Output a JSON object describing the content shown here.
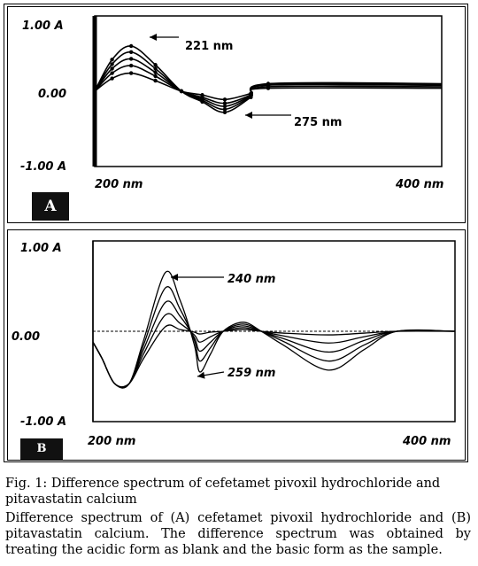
{
  "panels": [
    {
      "badge": "A",
      "y_tick_labels": [
        "1.00 A",
        "0.00",
        "-1.00 A"
      ],
      "x_tick_labels": [
        "200 nm",
        "400 nm"
      ],
      "annotations": [
        "221 nm",
        "275 nm"
      ]
    },
    {
      "badge": "B",
      "y_tick_labels": [
        "1.00 A",
        "0.00",
        "-1.00 A"
      ],
      "x_tick_labels": [
        "200 nm",
        "400 nm"
      ],
      "annotations": [
        "240 nm",
        "259 nm"
      ]
    }
  ],
  "caption": {
    "title": "Fig. 1: Difference spectrum of cefetamet pivoxil hydrochloride and pitavastatin calcium",
    "body": "Difference spectrum of (A) cefetamet pivoxil hydrochloride and (B) pitavastatin calcium. The difference spectrum was obtained by treating the acidic form as blank and the basic form as the sample."
  },
  "chart_data": [
    {
      "type": "line",
      "xlim": [
        200,
        400
      ],
      "ylim": [
        -1.0,
        1.0
      ],
      "y_ticks": [
        1.0,
        0.0,
        -1.0
      ],
      "grid": false,
      "series": [
        {
          "values": [
            [
              200,
              0.0
            ],
            [
              210,
              0.42
            ],
            [
              221,
              0.6
            ],
            [
              235,
              0.35
            ],
            [
              250,
              0.0
            ],
            [
              262,
              -0.14
            ],
            [
              275,
              -0.28
            ],
            [
              290,
              -0.08
            ],
            [
              300,
              0.1
            ],
            [
              400,
              0.1
            ]
          ]
        },
        {
          "values": [
            [
              200,
              0.0
            ],
            [
              210,
              0.36
            ],
            [
              221,
              0.52
            ],
            [
              235,
              0.3
            ],
            [
              250,
              0.0
            ],
            [
              262,
              -0.12
            ],
            [
              275,
              -0.24
            ],
            [
              290,
              -0.07
            ],
            [
              300,
              0.09
            ],
            [
              400,
              0.09
            ]
          ]
        },
        {
          "values": [
            [
              200,
              0.0
            ],
            [
              210,
              0.3
            ],
            [
              221,
              0.43
            ],
            [
              235,
              0.25
            ],
            [
              250,
              0.0
            ],
            [
              262,
              -0.1
            ],
            [
              275,
              -0.2
            ],
            [
              290,
              -0.06
            ],
            [
              300,
              0.08
            ],
            [
              400,
              0.08
            ]
          ]
        },
        {
          "values": [
            [
              200,
              0.0
            ],
            [
              210,
              0.24
            ],
            [
              221,
              0.34
            ],
            [
              235,
              0.2
            ],
            [
              250,
              0.0
            ],
            [
              262,
              -0.08
            ],
            [
              275,
              -0.16
            ],
            [
              290,
              -0.05
            ],
            [
              300,
              0.06
            ],
            [
              400,
              0.06
            ]
          ]
        },
        {
          "values": [
            [
              200,
              0.0
            ],
            [
              210,
              0.17
            ],
            [
              221,
              0.24
            ],
            [
              235,
              0.14
            ],
            [
              250,
              0.0
            ],
            [
              262,
              -0.05
            ],
            [
              275,
              -0.11
            ],
            [
              290,
              -0.03
            ],
            [
              300,
              0.04
            ],
            [
              400,
              0.04
            ]
          ]
        }
      ]
    },
    {
      "type": "line",
      "xlim": [
        200,
        400
      ],
      "ylim": [
        -1.0,
        1.0
      ],
      "y_ticks": [
        1.0,
        0.0,
        -1.0
      ],
      "grid": false,
      "series": [
        {
          "values": [
            [
              200,
              -0.12
            ],
            [
              205,
              -0.3
            ],
            [
              212,
              -0.58
            ],
            [
              220,
              -0.58
            ],
            [
              228,
              -0.1
            ],
            [
              240,
              0.65
            ],
            [
              248,
              0.35
            ],
            [
              256,
              -0.15
            ],
            [
              259,
              -0.45
            ],
            [
              265,
              -0.25
            ],
            [
              272,
              0.0
            ],
            [
              283,
              0.1
            ],
            [
              293,
              0.0
            ],
            [
              305,
              -0.15
            ],
            [
              330,
              -0.43
            ],
            [
              350,
              -0.2
            ],
            [
              368,
              0.0
            ],
            [
              400,
              0.0
            ]
          ]
        },
        {
          "values": [
            [
              200,
              -0.12
            ],
            [
              205,
              -0.3
            ],
            [
              212,
              -0.58
            ],
            [
              220,
              -0.58
            ],
            [
              228,
              -0.15
            ],
            [
              240,
              0.48
            ],
            [
              248,
              0.25
            ],
            [
              256,
              -0.1
            ],
            [
              259,
              -0.33
            ],
            [
              265,
              -0.18
            ],
            [
              272,
              0.0
            ],
            [
              283,
              0.08
            ],
            [
              293,
              0.0
            ],
            [
              305,
              -0.11
            ],
            [
              330,
              -0.33
            ],
            [
              350,
              -0.15
            ],
            [
              368,
              0.0
            ],
            [
              400,
              0.0
            ]
          ]
        },
        {
          "values": [
            [
              200,
              -0.12
            ],
            [
              205,
              -0.3
            ],
            [
              212,
              -0.58
            ],
            [
              220,
              -0.58
            ],
            [
              228,
              -0.2
            ],
            [
              240,
              0.32
            ],
            [
              248,
              0.17
            ],
            [
              256,
              -0.07
            ],
            [
              259,
              -0.22
            ],
            [
              265,
              -0.12
            ],
            [
              272,
              0.0
            ],
            [
              283,
              0.06
            ],
            [
              293,
              0.0
            ],
            [
              305,
              -0.08
            ],
            [
              330,
              -0.23
            ],
            [
              350,
              -0.1
            ],
            [
              368,
              0.0
            ],
            [
              400,
              0.0
            ]
          ]
        },
        {
          "values": [
            [
              200,
              -0.12
            ],
            [
              205,
              -0.3
            ],
            [
              212,
              -0.58
            ],
            [
              220,
              -0.58
            ],
            [
              228,
              -0.25
            ],
            [
              240,
              0.18
            ],
            [
              248,
              0.09
            ],
            [
              256,
              -0.04
            ],
            [
              259,
              -0.12
            ],
            [
              265,
              -0.06
            ],
            [
              272,
              0.0
            ],
            [
              283,
              0.04
            ],
            [
              293,
              0.0
            ],
            [
              305,
              -0.05
            ],
            [
              330,
              -0.13
            ],
            [
              350,
              -0.06
            ],
            [
              368,
              0.0
            ],
            [
              400,
              0.0
            ]
          ]
        },
        {
          "values": [
            [
              200,
              -0.12
            ],
            [
              205,
              -0.3
            ],
            [
              212,
              -0.58
            ],
            [
              220,
              -0.58
            ],
            [
              228,
              -0.3
            ],
            [
              240,
              0.05
            ],
            [
              248,
              0.02
            ],
            [
              256,
              -0.01
            ],
            [
              259,
              -0.03
            ],
            [
              265,
              -0.01
            ],
            [
              272,
              0.0
            ],
            [
              283,
              0.02
            ],
            [
              293,
              0.0
            ],
            [
              305,
              -0.02
            ],
            [
              330,
              -0.04
            ],
            [
              350,
              -0.02
            ],
            [
              368,
              0.0
            ],
            [
              400,
              0.0
            ]
          ]
        }
      ]
    }
  ]
}
